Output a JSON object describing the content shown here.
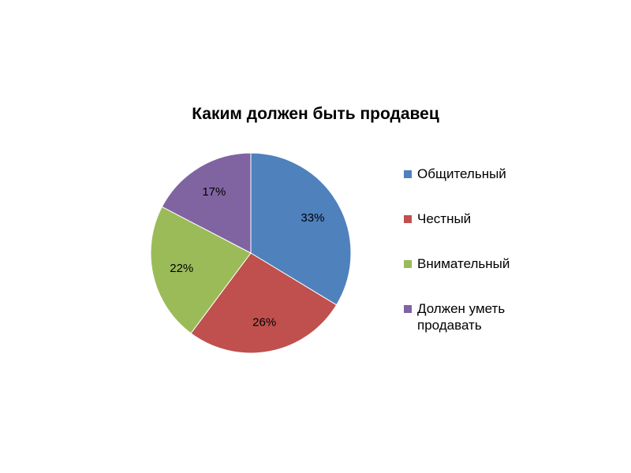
{
  "chart_data": {
    "type": "pie",
    "title": "Каким должен быть продавец",
    "categories": [
      "Общительный",
      "Честный",
      "Внимательный",
      "Должен уметь продавать"
    ],
    "values": [
      33,
      26,
      22,
      17
    ],
    "data_labels": [
      "33%",
      "26%",
      "22%",
      "17%"
    ],
    "colors": [
      "#4F81BD",
      "#C0504D",
      "#9BBB59",
      "#8064A2"
    ],
    "start_angle": "12 o'clock",
    "direction": "clockwise",
    "legend_position": "right"
  }
}
